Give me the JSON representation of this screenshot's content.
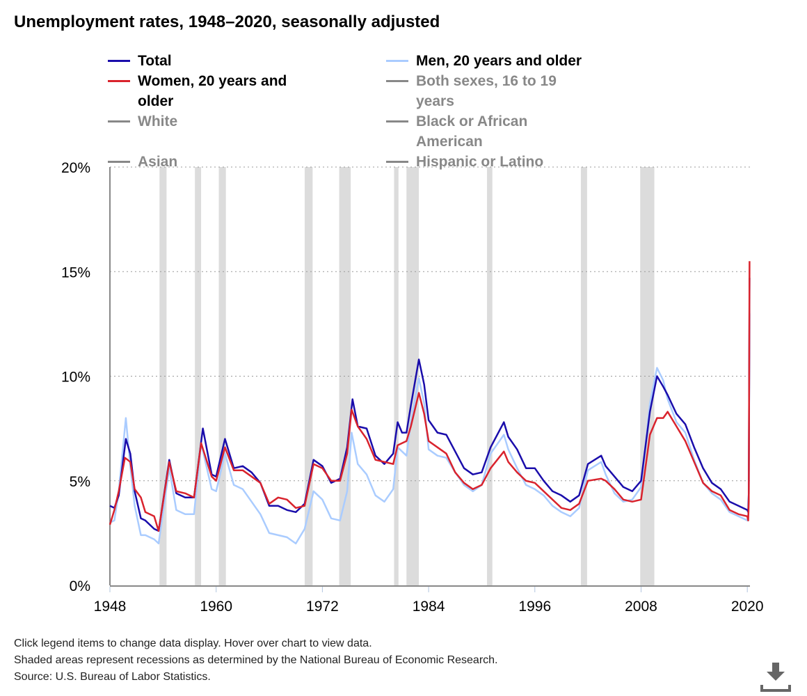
{
  "title": "Unemployment rates, 1948–2020, seasonally adjusted",
  "legend": [
    {
      "label": "Total",
      "color": "#1a0dab",
      "active": true
    },
    {
      "label": "Men, 20 years and older",
      "color": "#aaccff",
      "active": true
    },
    {
      "label": "Women, 20 years and older",
      "color": "#d9232d",
      "active": true
    },
    {
      "label": "Both sexes, 16 to 19 years",
      "color": "#888888",
      "active": false
    },
    {
      "label": "White",
      "color": "#888888",
      "active": false
    },
    {
      "label": "Black or African American",
      "color": "#888888",
      "active": false
    },
    {
      "label": "Asian",
      "color": "#888888",
      "active": false
    },
    {
      "label": "Hispanic or Latino",
      "color": "#888888",
      "active": false
    }
  ],
  "footnotes": [
    "Click legend items to change data display. Hover over chart to view data.",
    "Shaded areas represent recessions as determined by the National Bureau of Economic Research.",
    "Source: U.S. Bureau of Labor Statistics."
  ],
  "download_icon": "download-icon",
  "chart_data": {
    "type": "line",
    "xlim": [
      1948,
      2020.3
    ],
    "ylim": [
      0,
      20
    ],
    "x_ticks": [
      "1948",
      "1960",
      "1972",
      "1984",
      "1996",
      "2008",
      "2020"
    ],
    "y_ticks": [
      "0%",
      "5%",
      "10%",
      "15%",
      "20%"
    ],
    "grid": "horizontal dotted",
    "legend_position": "top",
    "recessions": [
      [
        1953.6,
        1954.4
      ],
      [
        1957.6,
        1958.3
      ],
      [
        1960.3,
        1961.1
      ],
      [
        1970.0,
        1970.9
      ],
      [
        1973.9,
        1975.2
      ],
      [
        1980.1,
        1980.6
      ],
      [
        1981.5,
        1982.9
      ],
      [
        1990.6,
        1991.2
      ],
      [
        2001.2,
        2001.9
      ],
      [
        2007.9,
        2009.5
      ]
    ],
    "series": [
      {
        "name": "Men, 20 years and older",
        "color": "#aaccff",
        "points": [
          [
            1948,
            3.0
          ],
          [
            1948.5,
            3.1
          ],
          [
            1949,
            4.5
          ],
          [
            1949.8,
            8.0
          ],
          [
            1950.3,
            5.7
          ],
          [
            1950.8,
            3.8
          ],
          [
            1951.5,
            2.4
          ],
          [
            1952,
            2.4
          ],
          [
            1953,
            2.2
          ],
          [
            1953.5,
            2.0
          ],
          [
            1954.7,
            5.6
          ],
          [
            1955.5,
            3.6
          ],
          [
            1956.5,
            3.4
          ],
          [
            1957.5,
            3.4
          ],
          [
            1958.3,
            6.8
          ],
          [
            1959.5,
            4.6
          ],
          [
            1960,
            4.5
          ],
          [
            1961,
            6.3
          ],
          [
            1962,
            4.8
          ],
          [
            1963,
            4.6
          ],
          [
            1964,
            4.0
          ],
          [
            1965,
            3.4
          ],
          [
            1966,
            2.5
          ],
          [
            1967,
            2.4
          ],
          [
            1968,
            2.3
          ],
          [
            1969,
            2.0
          ],
          [
            1970,
            2.7
          ],
          [
            1971,
            4.5
          ],
          [
            1972,
            4.1
          ],
          [
            1973,
            3.2
          ],
          [
            1974,
            3.1
          ],
          [
            1974.8,
            4.5
          ],
          [
            1975.3,
            7.3
          ],
          [
            1976,
            5.8
          ],
          [
            1977,
            5.3
          ],
          [
            1978,
            4.3
          ],
          [
            1979,
            4.0
          ],
          [
            1980,
            4.6
          ],
          [
            1980.5,
            6.6
          ],
          [
            1981.5,
            6.2
          ],
          [
            1982,
            7.8
          ],
          [
            1982.9,
            9.9
          ],
          [
            1983.5,
            8.7
          ],
          [
            1984,
            6.5
          ],
          [
            1985,
            6.2
          ],
          [
            1986,
            6.1
          ],
          [
            1987,
            5.4
          ],
          [
            1988,
            4.8
          ],
          [
            1989,
            4.5
          ],
          [
            1990,
            4.8
          ],
          [
            1991,
            6.3
          ],
          [
            1992.5,
            7.2
          ],
          [
            1993,
            6.5
          ],
          [
            1994,
            5.6
          ],
          [
            1995,
            4.8
          ],
          [
            1996,
            4.6
          ],
          [
            1997,
            4.3
          ],
          [
            1998,
            3.8
          ],
          [
            1999,
            3.5
          ],
          [
            2000,
            3.3
          ],
          [
            2001,
            3.7
          ],
          [
            2002,
            5.5
          ],
          [
            2003.5,
            5.9
          ],
          [
            2004,
            5.3
          ],
          [
            2005,
            4.4
          ],
          [
            2006,
            4.0
          ],
          [
            2007,
            4.1
          ],
          [
            2008,
            4.7
          ],
          [
            2009,
            8.7
          ],
          [
            2009.8,
            10.4
          ],
          [
            2010.5,
            9.8
          ],
          [
            2011,
            8.9
          ],
          [
            2012,
            7.8
          ],
          [
            2013,
            7.3
          ],
          [
            2014,
            6.0
          ],
          [
            2015,
            4.9
          ],
          [
            2016,
            4.4
          ],
          [
            2017,
            4.1
          ],
          [
            2018,
            3.5
          ],
          [
            2019,
            3.3
          ],
          [
            2020,
            3.1
          ],
          [
            2020.1,
            3.4
          ],
          [
            2020.17,
            4.4
          ],
          [
            2020.25,
            13.0
          ]
        ]
      },
      {
        "name": "Total",
        "color": "#1a0dab",
        "points": [
          [
            1948,
            3.8
          ],
          [
            1948.5,
            3.7
          ],
          [
            1949,
            4.3
          ],
          [
            1949.8,
            7.0
          ],
          [
            1950.3,
            6.3
          ],
          [
            1950.8,
            4.5
          ],
          [
            1951.5,
            3.2
          ],
          [
            1952,
            3.1
          ],
          [
            1953,
            2.7
          ],
          [
            1953.5,
            2.6
          ],
          [
            1954.7,
            6.0
          ],
          [
            1955.5,
            4.4
          ],
          [
            1956.5,
            4.2
          ],
          [
            1957.5,
            4.2
          ],
          [
            1958.5,
            7.5
          ],
          [
            1959.5,
            5.3
          ],
          [
            1960,
            5.2
          ],
          [
            1961,
            7.0
          ],
          [
            1962,
            5.6
          ],
          [
            1963,
            5.7
          ],
          [
            1964,
            5.4
          ],
          [
            1965,
            4.9
          ],
          [
            1966,
            3.8
          ],
          [
            1967,
            3.8
          ],
          [
            1968,
            3.6
          ],
          [
            1969,
            3.5
          ],
          [
            1970,
            3.9
          ],
          [
            1971,
            6.0
          ],
          [
            1972,
            5.7
          ],
          [
            1973,
            4.9
          ],
          [
            1974,
            5.1
          ],
          [
            1974.8,
            6.6
          ],
          [
            1975.4,
            8.9
          ],
          [
            1976,
            7.6
          ],
          [
            1977,
            7.5
          ],
          [
            1978,
            6.2
          ],
          [
            1979,
            5.8
          ],
          [
            1980,
            6.3
          ],
          [
            1980.5,
            7.8
          ],
          [
            1981,
            7.3
          ],
          [
            1981.5,
            7.3
          ],
          [
            1982,
            8.6
          ],
          [
            1982.9,
            10.8
          ],
          [
            1983.5,
            9.6
          ],
          [
            1984,
            7.9
          ],
          [
            1985,
            7.3
          ],
          [
            1986,
            7.2
          ],
          [
            1987,
            6.4
          ],
          [
            1988,
            5.6
          ],
          [
            1989,
            5.3
          ],
          [
            1990,
            5.4
          ],
          [
            1991,
            6.6
          ],
          [
            1992.5,
            7.8
          ],
          [
            1993,
            7.1
          ],
          [
            1994,
            6.5
          ],
          [
            1995,
            5.6
          ],
          [
            1996,
            5.6
          ],
          [
            1997,
            5.0
          ],
          [
            1998,
            4.5
          ],
          [
            1999,
            4.3
          ],
          [
            2000,
            4.0
          ],
          [
            2001,
            4.3
          ],
          [
            2002,
            5.8
          ],
          [
            2003.5,
            6.2
          ],
          [
            2004,
            5.7
          ],
          [
            2005,
            5.2
          ],
          [
            2006,
            4.7
          ],
          [
            2007,
            4.5
          ],
          [
            2008,
            5.0
          ],
          [
            2009,
            8.3
          ],
          [
            2009.8,
            10.0
          ],
          [
            2010.5,
            9.5
          ],
          [
            2011,
            9.1
          ],
          [
            2012,
            8.2
          ],
          [
            2013,
            7.7
          ],
          [
            2014,
            6.6
          ],
          [
            2015,
            5.6
          ],
          [
            2016,
            4.9
          ],
          [
            2017,
            4.6
          ],
          [
            2018,
            4.0
          ],
          [
            2019,
            3.8
          ],
          [
            2020,
            3.6
          ],
          [
            2020.1,
            3.5
          ],
          [
            2020.17,
            4.4
          ],
          [
            2020.25,
            14.7
          ]
        ]
      },
      {
        "name": "Women, 20 years and older",
        "color": "#d9232d",
        "points": [
          [
            1948,
            2.9
          ],
          [
            1948.5,
            3.6
          ],
          [
            1949,
            4.5
          ],
          [
            1949.7,
            6.1
          ],
          [
            1950.3,
            5.9
          ],
          [
            1950.8,
            4.6
          ],
          [
            1951.5,
            4.2
          ],
          [
            1952,
            3.5
          ],
          [
            1953,
            3.3
          ],
          [
            1953.5,
            2.6
          ],
          [
            1954.7,
            5.9
          ],
          [
            1955.5,
            4.5
          ],
          [
            1956.5,
            4.4
          ],
          [
            1957.5,
            4.2
          ],
          [
            1958.3,
            6.8
          ],
          [
            1959.5,
            5.2
          ],
          [
            1960,
            5.0
          ],
          [
            1961,
            6.6
          ],
          [
            1962,
            5.5
          ],
          [
            1963,
            5.5
          ],
          [
            1964,
            5.2
          ],
          [
            1965,
            4.9
          ],
          [
            1966,
            3.9
          ],
          [
            1967,
            4.2
          ],
          [
            1968,
            4.1
          ],
          [
            1969,
            3.7
          ],
          [
            1970,
            3.8
          ],
          [
            1971,
            5.8
          ],
          [
            1972,
            5.6
          ],
          [
            1973,
            5.0
          ],
          [
            1974,
            5.0
          ],
          [
            1974.8,
            6.3
          ],
          [
            1975.3,
            8.4
          ],
          [
            1976,
            7.6
          ],
          [
            1977,
            7.0
          ],
          [
            1978,
            6.0
          ],
          [
            1979,
            5.9
          ],
          [
            1980,
            5.8
          ],
          [
            1980.5,
            6.7
          ],
          [
            1981.5,
            6.9
          ],
          [
            1982,
            7.6
          ],
          [
            1982.9,
            9.2
          ],
          [
            1983.5,
            8.2
          ],
          [
            1984,
            6.9
          ],
          [
            1985,
            6.6
          ],
          [
            1986,
            6.3
          ],
          [
            1987,
            5.4
          ],
          [
            1988,
            4.9
          ],
          [
            1989,
            4.6
          ],
          [
            1990,
            4.8
          ],
          [
            1991,
            5.6
          ],
          [
            1992.5,
            6.4
          ],
          [
            1993,
            5.9
          ],
          [
            1994,
            5.4
          ],
          [
            1995,
            5.0
          ],
          [
            1996,
            4.9
          ],
          [
            1997,
            4.5
          ],
          [
            1998,
            4.1
          ],
          [
            1999,
            3.7
          ],
          [
            2000,
            3.6
          ],
          [
            2001,
            3.9
          ],
          [
            2002,
            5.0
          ],
          [
            2003.5,
            5.1
          ],
          [
            2004,
            5.0
          ],
          [
            2005,
            4.6
          ],
          [
            2006,
            4.1
          ],
          [
            2007,
            4.0
          ],
          [
            2008,
            4.1
          ],
          [
            2009,
            7.2
          ],
          [
            2009.8,
            8.0
          ],
          [
            2010.5,
            8.0
          ],
          [
            2011,
            8.3
          ],
          [
            2012,
            7.6
          ],
          [
            2013,
            6.9
          ],
          [
            2014,
            5.9
          ],
          [
            2015,
            4.9
          ],
          [
            2016,
            4.5
          ],
          [
            2017,
            4.3
          ],
          [
            2018,
            3.6
          ],
          [
            2019,
            3.4
          ],
          [
            2020,
            3.3
          ],
          [
            2020.1,
            3.1
          ],
          [
            2020.17,
            4.0
          ],
          [
            2020.25,
            15.5
          ]
        ]
      }
    ]
  }
}
